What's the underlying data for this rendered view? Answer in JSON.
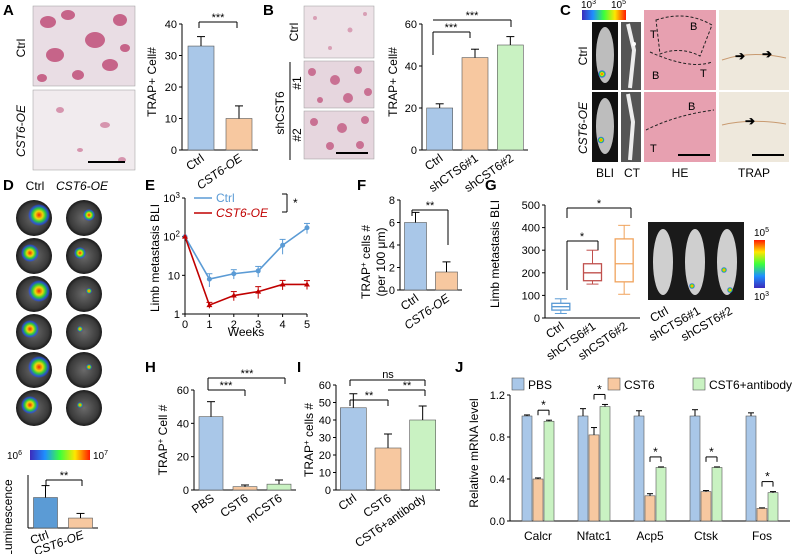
{
  "panel_letters": [
    "A",
    "B",
    "C",
    "D",
    "E",
    "F",
    "G",
    "H",
    "I",
    "J"
  ],
  "colors": {
    "blue": "#a9c7e8",
    "orange": "#f7c8a0",
    "green": "#c9f2c2",
    "line_blue": "#5b9bd5",
    "line_red": "#c00000",
    "stain": "#c0507a"
  },
  "panelA": {
    "img_labels": [
      "Ctrl",
      "CST6-OE"
    ],
    "ylabel": "TRAP+ Cell#",
    "sig": "***",
    "chart_data": {
      "type": "bar",
      "categories": [
        "Ctrl",
        "CST6-OE"
      ],
      "values": [
        33,
        10
      ],
      "errors": [
        3,
        4
      ],
      "ylim": [
        0,
        40
      ],
      "yticks": [
        0,
        10,
        20,
        30,
        40
      ],
      "bar_colors": [
        "#a9c7e8",
        "#f7c8a0"
      ],
      "ylabel": "TRAP+ Cell#"
    }
  },
  "panelB": {
    "img_labels": [
      "Ctrl",
      "shCST6",
      "#1",
      "#2"
    ],
    "ylabel": "TRAP+ Cell#",
    "sigs": [
      "***",
      "***"
    ],
    "chart_data": {
      "type": "bar",
      "categories": [
        "Ctrl",
        "shCTS6#1",
        "shCST6#2"
      ],
      "values": [
        20,
        44,
        50
      ],
      "errors": [
        2,
        4,
        4
      ],
      "ylim": [
        0,
        60
      ],
      "yticks": [
        0,
        20,
        40,
        60
      ],
      "bar_colors": [
        "#a9c7e8",
        "#f7c8a0",
        "#c9f2c2"
      ],
      "ylabel": "TRAP+ Cell#"
    }
  },
  "panelC": {
    "scale_low": "10",
    "scale_low_exp": "3",
    "scale_high": "10",
    "scale_high_exp": "5",
    "row_labels": [
      "Ctrl",
      "CST6-OE"
    ],
    "col_labels": [
      "BLI",
      "CT",
      "HE",
      "TRAP"
    ],
    "he_letters": [
      "T",
      "B",
      "B",
      "T",
      "B",
      "T"
    ]
  },
  "panelD": {
    "col_labels": [
      "Ctrl",
      "CST6-OE"
    ],
    "scale_low": "10",
    "scale_low_exp": "6",
    "scale_high": "10",
    "scale_high_exp": "7",
    "ylabel": "Luminescence",
    "sig": "**",
    "chart_data": {
      "type": "bar",
      "categories": [
        "Ctrl",
        "CST6-OE"
      ],
      "values": [
        4.6,
        1.5
      ],
      "errors": [
        1.8,
        0.7
      ],
      "ylim": [
        0,
        8
      ],
      "bar_colors": [
        "#5b9bd5",
        "#f7c8a0"
      ],
      "ylabel": "Luminescence"
    }
  },
  "panelE": {
    "ylabel": "Limb metastasis BLI",
    "xlabel": "Weeks",
    "sig": "*",
    "chart_data": {
      "type": "line",
      "x": [
        0,
        1,
        2,
        3,
        4,
        5
      ],
      "xticks": [
        "0",
        "1",
        "2",
        "3",
        "4",
        "5"
      ],
      "ylog": true,
      "ylim": [
        1,
        1000
      ],
      "yticks": [
        "1",
        "10",
        "10",
        "10"
      ],
      "ytick_exps": [
        "",
        "",
        "2",
        "3"
      ],
      "series": [
        {
          "name": "Ctrl",
          "values": [
            100,
            8,
            11,
            13,
            60,
            170
          ],
          "errors": [
            0,
            3,
            3,
            4,
            25,
            50
          ],
          "color": "#5b9bd5"
        },
        {
          "name": "CST6-OE",
          "values": [
            100,
            1.7,
            3,
            3.8,
            5.8,
            5.8
          ],
          "errors": [
            0,
            0.3,
            0.8,
            1.3,
            1.6,
            1.5
          ],
          "color": "#c00000"
        }
      ],
      "xlabel": "Weeks",
      "ylabel": "Limb metastasis BLI"
    }
  },
  "panelF": {
    "ylabel1": "TRAP",
    "ylabel2": " cells #",
    "ylabel_sup": "+",
    "ylabel_sub": "(per 100 μm)",
    "sig": "**",
    "chart_data": {
      "type": "bar",
      "categories": [
        "Ctrl",
        "CST6-OE"
      ],
      "values": [
        6,
        1.6
      ],
      "errors": [
        0.9,
        0.9
      ],
      "ylim": [
        0,
        8
      ],
      "yticks": [
        0,
        2,
        4,
        6,
        8
      ],
      "bar_colors": [
        "#a9c7e8",
        "#f7c8a0"
      ]
    }
  },
  "panelG": {
    "ylabel": "Limb metastasis BLI",
    "sigs": [
      "*",
      "*"
    ],
    "mouse_labels": [
      "Ctrl",
      "shCTS6#1",
      "shCST6#2"
    ],
    "scale_high": "10",
    "scale_high_exp": "5",
    "scale_low": "10",
    "scale_low_exp": "3",
    "chart_data": {
      "type": "box",
      "categories": [
        "Ctrl",
        "shCTS6#1",
        "shCST6#2"
      ],
      "ylim": [
        0,
        500
      ],
      "yticks": [
        0,
        100,
        200,
        300,
        400,
        500
      ],
      "boxes": [
        {
          "min": 20,
          "q1": 35,
          "median": 50,
          "q3": 65,
          "max": 85
        },
        {
          "min": 150,
          "q1": 165,
          "median": 200,
          "q3": 240,
          "max": 300
        },
        {
          "min": 105,
          "q1": 160,
          "median": 240,
          "q3": 350,
          "max": 410
        }
      ],
      "box_colors": [
        "#5b9bd5",
        "#c0504d",
        "#f0a35c"
      ],
      "ylabel": "Limb metastasis BLI"
    }
  },
  "panelH": {
    "ylabel1": "TRAP",
    "ylabel2": " Cell #",
    "ylabel_sup": "+",
    "sigs": [
      "***",
      "***",
      "***"
    ],
    "chart_data": {
      "type": "bar",
      "categories": [
        "PBS",
        "CST6",
        "mCST6"
      ],
      "values": [
        44,
        2,
        3.5
      ],
      "errors": [
        9,
        1,
        2.5
      ],
      "ylim": [
        0,
        60
      ],
      "yticks": [
        0,
        20,
        40,
        60
      ],
      "bar_colors": [
        "#a9c7e8",
        "#f7c8a0",
        "#c9f2c2"
      ]
    }
  },
  "panelI": {
    "ylabel1": "TRAP",
    "ylabel2": " cells #",
    "ylabel_sup": "+",
    "sigs": [
      "ns",
      "**",
      "**"
    ],
    "chart_data": {
      "type": "bar",
      "categories": [
        "Ctrl",
        "CST6",
        "CST6+antibody"
      ],
      "values": [
        47,
        24,
        40
      ],
      "errors": [
        8,
        8,
        8
      ],
      "ylim": [
        0,
        60
      ],
      "yticks": [
        0,
        10,
        20,
        30,
        40,
        50,
        60
      ],
      "bar_colors": [
        "#a9c7e8",
        "#f7c8a0",
        "#c9f2c2"
      ]
    }
  },
  "panelJ": {
    "ylabel": "Relative mRNA level",
    "sig": "*",
    "chart_data": {
      "type": "bar",
      "categories": [
        "Calcr",
        "Nfatc1",
        "Acp5",
        "Ctsk",
        "Fos"
      ],
      "series": [
        {
          "name": "PBS",
          "values": [
            1.0,
            1.0,
            1.0,
            1.0,
            1.0
          ],
          "errors": [
            0.01,
            0.07,
            0.05,
            0.06,
            0.03
          ],
          "color": "#a9c7e8"
        },
        {
          "name": "CST6",
          "values": [
            0.4,
            0.82,
            0.24,
            0.28,
            0.12
          ],
          "errors": [
            0.01,
            0.07,
            0.02,
            0.01,
            0.005
          ],
          "color": "#f7c8a0"
        },
        {
          "name": "CST6+antibody",
          "values": [
            0.95,
            1.09,
            0.51,
            0.51,
            0.27
          ],
          "errors": [
            0.01,
            0.02,
            0.005,
            0.005,
            0.01
          ],
          "color": "#c9f2c2"
        }
      ],
      "ylim": [
        0,
        1.2
      ],
      "yticks": [
        "0.0",
        "0.4",
        "0.8",
        "1.2"
      ],
      "legend": "top",
      "ylabel": "Relative mRNA level"
    }
  }
}
